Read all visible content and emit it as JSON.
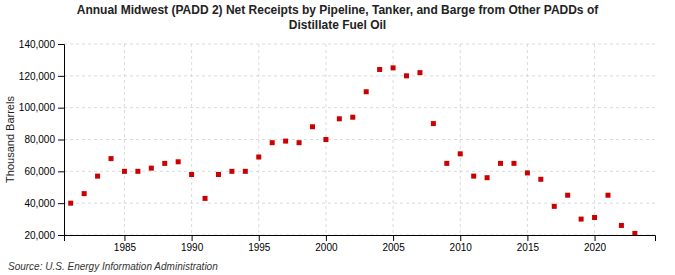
{
  "chart_data": {
    "type": "scatter",
    "title": "Annual Midwest (PADD 2) Net Receipts by Pipeline, Tanker, and Barge from Other PADDs of\nDistillate Fuel Oil",
    "y_label": "Thousand Barrels",
    "annotations": [
      "Source: U.S. Energy Information Administration"
    ],
    "x": [
      1981,
      1982,
      1983,
      1984,
      1985,
      1986,
      1987,
      1988,
      1989,
      1990,
      1991,
      1992,
      1993,
      1994,
      1995,
      1996,
      1997,
      1998,
      1999,
      2000,
      2001,
      2002,
      2003,
      2004,
      2005,
      2006,
      2007,
      2008,
      2009,
      2010,
      2011,
      2012,
      2013,
      2014,
      2015,
      2016,
      2017,
      2018,
      2019,
      2020,
      2021,
      2022,
      2023
    ],
    "values": [
      40000,
      46000,
      57000,
      68000,
      60000,
      60000,
      62000,
      65000,
      66000,
      58000,
      43000,
      58000,
      60000,
      60000,
      69000,
      78000,
      79000,
      78000,
      88000,
      80000,
      93000,
      94000,
      110000,
      124000,
      125000,
      120000,
      122000,
      90000,
      65000,
      71000,
      57000,
      56000,
      65000,
      65000,
      59000,
      55000,
      38000,
      45000,
      30000,
      31000,
      45000,
      26000,
      21000
    ],
    "color": "#cc0000",
    "marker": "square",
    "xlim": [
      1980.5,
      2024.5
    ],
    "xticks": [
      1985,
      1990,
      1995,
      2000,
      2005,
      2010,
      2015,
      2020
    ],
    "ylim": [
      20000,
      140000
    ],
    "yticks": [
      {
        "value": 20000,
        "label": "20,000"
      },
      {
        "value": 40000,
        "label": "40,000"
      },
      {
        "value": 60000,
        "label": "60,000"
      },
      {
        "value": 80000,
        "label": "80,000"
      },
      {
        "value": 100000,
        "label": "100,000"
      },
      {
        "value": 120000,
        "label": "120,000"
      },
      {
        "value": 140000,
        "label": "140,000"
      }
    ],
    "grid": true
  }
}
